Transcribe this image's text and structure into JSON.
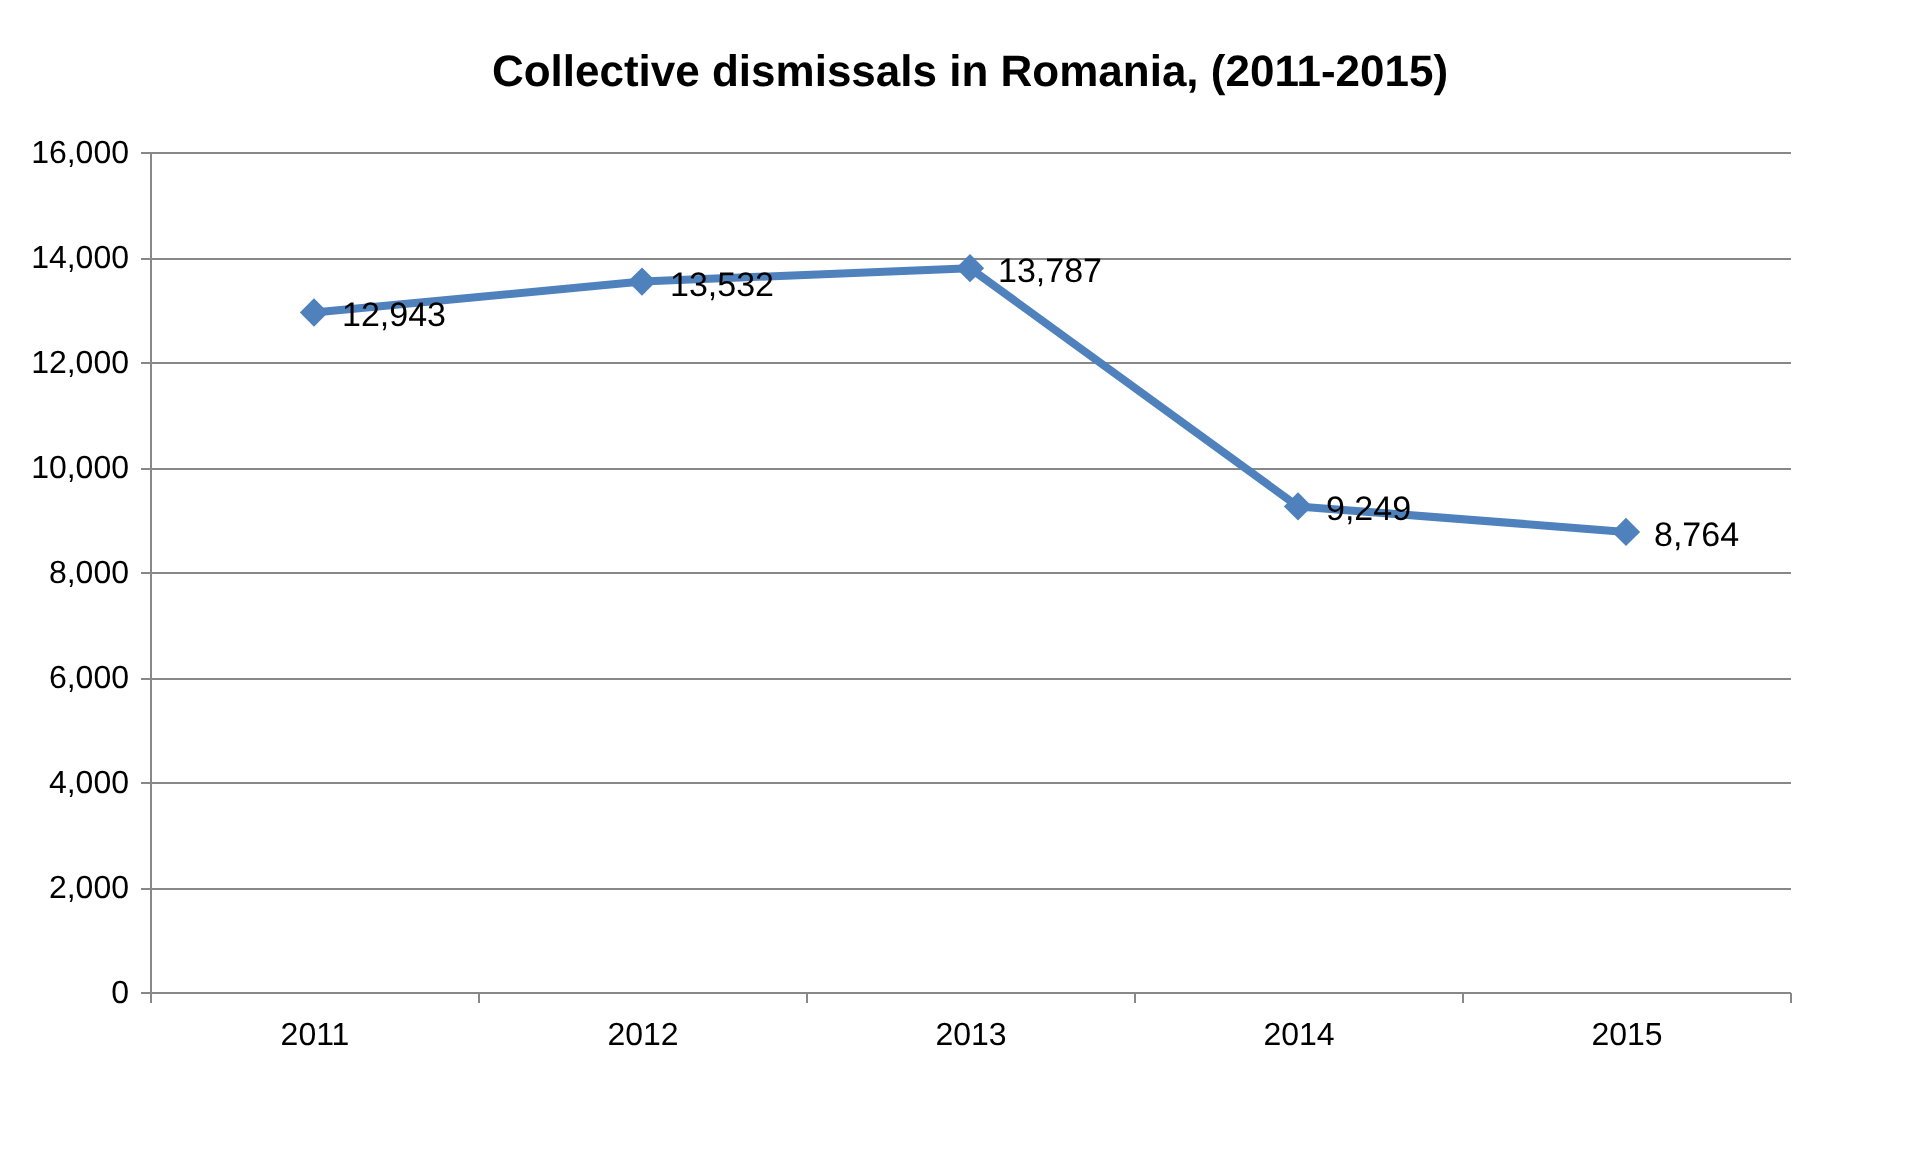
{
  "chart_data": {
    "type": "line",
    "title": "Collective dismissals in Romania, (2011-2015)",
    "categories": [
      "2011",
      "2012",
      "2013",
      "2014",
      "2015"
    ],
    "series": [
      {
        "color": "#4f81bd",
        "values": [
          12943,
          13532,
          13787,
          9249,
          8764
        ],
        "value_labels": [
          "12,943",
          "13,532",
          "13,787",
          "9,249",
          "8,764"
        ]
      }
    ],
    "ylim": [
      0,
      16000
    ],
    "yticks": [
      0,
      {
        "value": 2000,
        "label": "2,000"
      },
      {
        "value": 4000,
        "label": "4,000"
      },
      {
        "value": 6000,
        "label": "6,000"
      },
      {
        "value": 8000,
        "label": "8,000"
      },
      {
        "value": 10000,
        "label": "10,000"
      },
      {
        "value": 12000,
        "label": "12,000"
      },
      {
        "value": 14000,
        "label": "14,000"
      },
      {
        "value": 16000,
        "label": "16,000"
      }
    ],
    "grid": "y",
    "marker": "diamond",
    "line_style": "solid",
    "legend": false
  }
}
